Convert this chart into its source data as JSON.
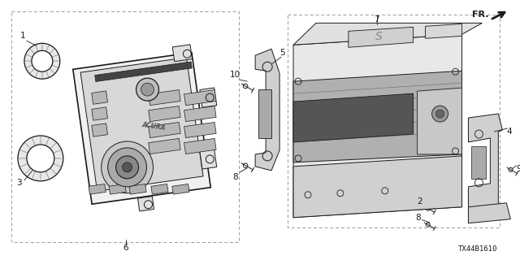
{
  "bg_color": "#ffffff",
  "line_color": "#1a1a1a",
  "fig_width": 6.4,
  "fig_height": 3.2,
  "dpi": 100,
  "code_text": "TX44B1610",
  "fr_text": "FR."
}
